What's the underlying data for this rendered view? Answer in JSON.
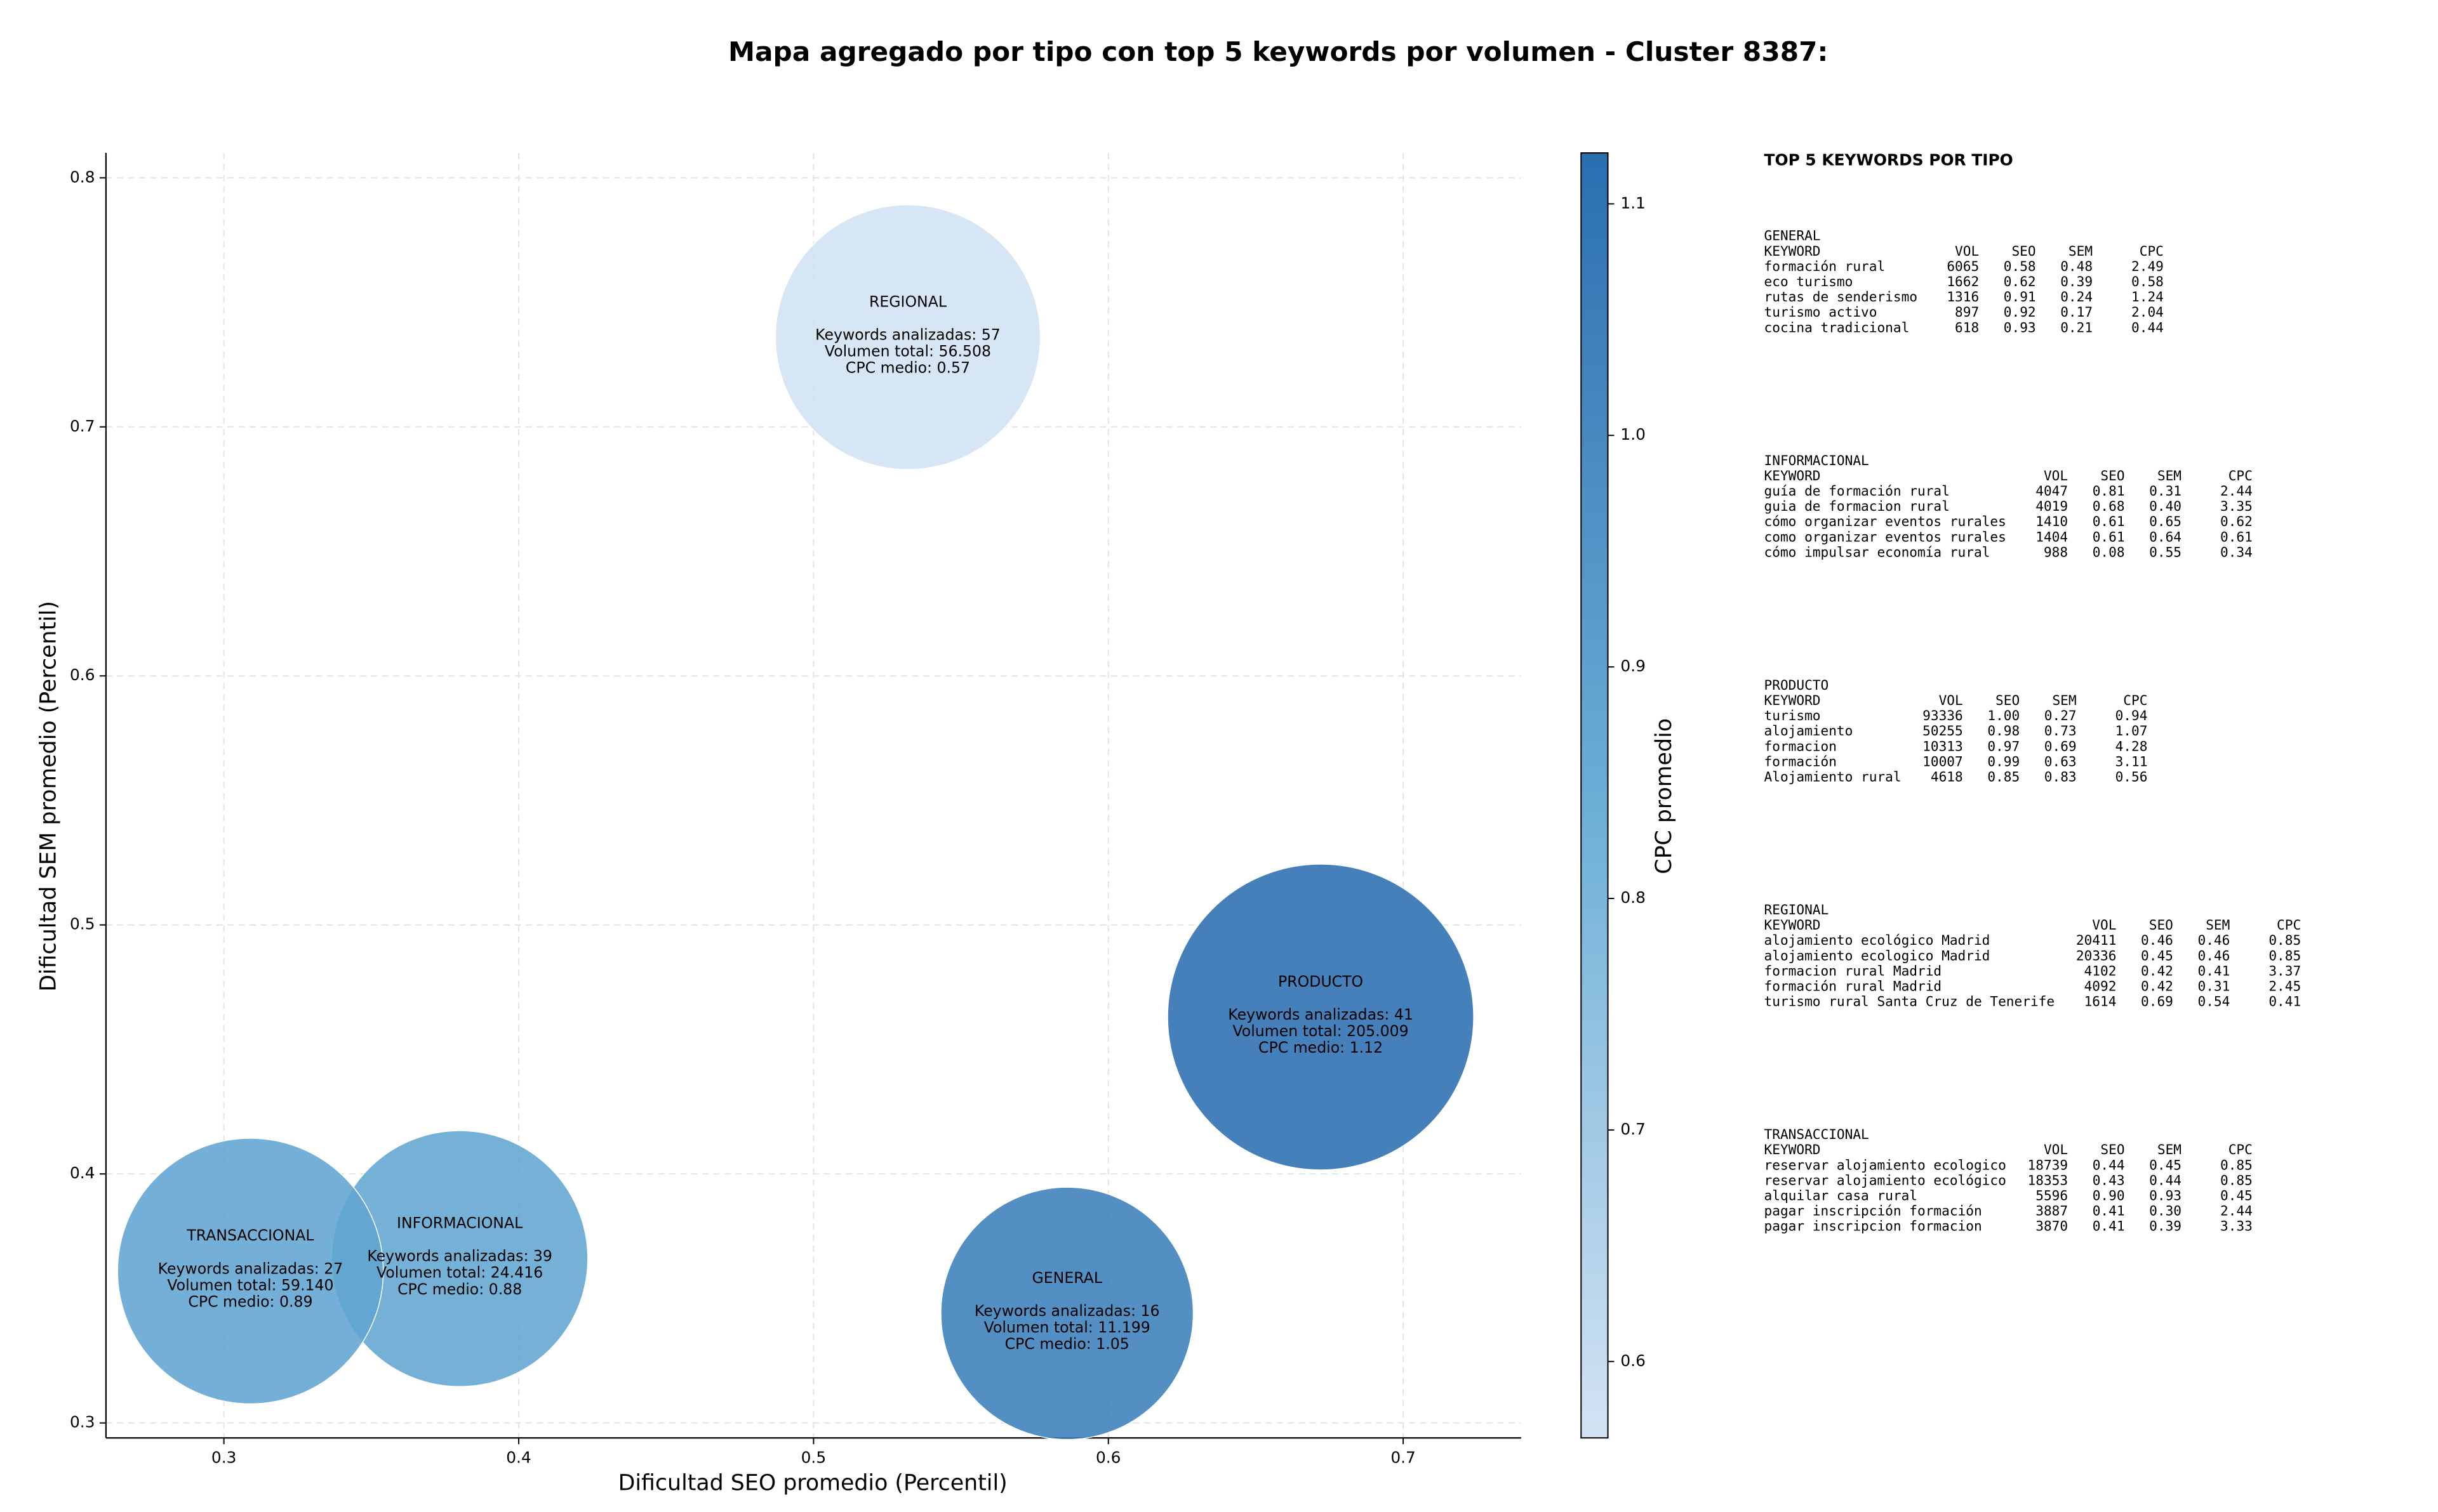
{
  "chart_data": {
    "type": "bubble",
    "title": "Mapa agregado por tipo con top 5 keywords por volumen - Cluster 8387:",
    "xlabel": "Dificultad SEO promedio (Percentil)",
    "ylabel": "Dificultad SEM promedio (Percentil)",
    "xlim": [
      0.26,
      0.74
    ],
    "ylim": [
      0.294,
      0.81
    ],
    "xticks": [
      0.3,
      0.4,
      0.5,
      0.6,
      0.7
    ],
    "yticks": [
      0.3,
      0.4,
      0.5,
      0.6,
      0.7,
      0.8
    ],
    "grid": true,
    "colorbar": {
      "label": "CPC promedio",
      "lim": [
        0.567,
        1.122
      ],
      "ticks": [
        0.6,
        0.7,
        0.8,
        0.9,
        {
          "value": 1.0,
          "label": "1.0"
        },
        1.1
      ],
      "colormap": [
        "#d3e3f3",
        "#6aaed6",
        "#2b6eb0"
      ]
    },
    "points": [
      {
        "label": "REGIONAL",
        "x": 0.532,
        "y": 0.736,
        "size": 56508,
        "color_value": 0.57,
        "lines": [
          "Keywords analizadas: 57",
          "Volumen total: 56.508",
          "CPC medio: 0.57"
        ]
      },
      {
        "label": "PRODUCTO",
        "x": 0.672,
        "y": 0.463,
        "size": 205009,
        "color_value": 1.12,
        "lines": [
          "Keywords analizadas: 41",
          "Volumen total: 205.009",
          "CPC medio: 1.12"
        ]
      },
      {
        "label": "GENERAL",
        "x": 0.586,
        "y": 0.344,
        "size": 11199,
        "color_value": 1.05,
        "lines": [
          "Keywords analizadas: 16",
          "Volumen total: 11.199",
          "CPC medio: 1.05"
        ]
      },
      {
        "label": "INFORMACIONAL",
        "x": 0.38,
        "y": 0.366,
        "size": 24416,
        "color_value": 0.88,
        "lines": [
          "Keywords analizadas: 39",
          "Volumen total: 24.416",
          "CPC medio: 0.88"
        ]
      },
      {
        "label": "TRANSACCIONAL",
        "x": 0.309,
        "y": 0.361,
        "size": 59140,
        "color_value": 0.89,
        "lines": [
          "Keywords analizadas: 27",
          "Volumen total: 59.140",
          "CPC medio: 0.89"
        ]
      }
    ]
  },
  "side_panel": {
    "title": "TOP 5 KEYWORDS POR TIPO",
    "columns": [
      "KEYWORD",
      "VOL",
      "SEO",
      "SEM",
      "CPC"
    ],
    "sections": [
      {
        "name": "GENERAL",
        "rows": [
          [
            "formación rural",
            "6065",
            "0.58",
            "0.48",
            "2.49"
          ],
          [
            "eco turismo",
            "1662",
            "0.62",
            "0.39",
            "0.58"
          ],
          [
            "rutas de senderismo",
            "1316",
            "0.91",
            "0.24",
            "1.24"
          ],
          [
            "turismo activo",
            "897",
            "0.92",
            "0.17",
            "2.04"
          ],
          [
            "cocina tradicional",
            "618",
            "0.93",
            "0.21",
            "0.44"
          ]
        ]
      },
      {
        "name": "INFORMACIONAL",
        "rows": [
          [
            "guía de formación rural",
            "4047",
            "0.81",
            "0.31",
            "2.44"
          ],
          [
            "guia de formacion rural",
            "4019",
            "0.68",
            "0.40",
            "3.35"
          ],
          [
            "cómo organizar eventos rurales",
            "1410",
            "0.61",
            "0.65",
            "0.62"
          ],
          [
            "como organizar eventos rurales",
            "1404",
            "0.61",
            "0.64",
            "0.61"
          ],
          [
            "cómo impulsar economía rural",
            "988",
            "0.08",
            "0.55",
            "0.34"
          ]
        ]
      },
      {
        "name": "PRODUCTO",
        "rows": [
          [
            "turismo",
            "93336",
            "1.00",
            "0.27",
            "0.94"
          ],
          [
            "alojamiento",
            "50255",
            "0.98",
            "0.73",
            "1.07"
          ],
          [
            "formacion",
            "10313",
            "0.97",
            "0.69",
            "4.28"
          ],
          [
            "formación",
            "10007",
            "0.99",
            "0.63",
            "3.11"
          ],
          [
            "Alojamiento rural",
            "4618",
            "0.85",
            "0.83",
            "0.56"
          ]
        ]
      },
      {
        "name": "REGIONAL",
        "rows": [
          [
            "alojamiento ecológico Madrid",
            "20411",
            "0.46",
            "0.46",
            "0.85"
          ],
          [
            "alojamiento ecologico Madrid",
            "20336",
            "0.45",
            "0.46",
            "0.85"
          ],
          [
            "formacion rural Madrid",
            "4102",
            "0.42",
            "0.41",
            "3.37"
          ],
          [
            "formación rural Madrid",
            "4092",
            "0.42",
            "0.31",
            "2.45"
          ],
          [
            "turismo rural Santa Cruz de Tenerife",
            "1614",
            "0.69",
            "0.54",
            "0.41"
          ]
        ]
      },
      {
        "name": "TRANSACCIONAL",
        "rows": [
          [
            "reservar alojamiento ecologico",
            "18739",
            "0.44",
            "0.45",
            "0.85"
          ],
          [
            "reservar alojamiento ecológico",
            "18353",
            "0.43",
            "0.44",
            "0.85"
          ],
          [
            "alquilar casa rural",
            "5596",
            "0.90",
            "0.93",
            "0.45"
          ],
          [
            "pagar inscripción formación",
            "3887",
            "0.41",
            "0.30",
            "2.44"
          ],
          [
            "pagar inscripcion formacion",
            "3870",
            "0.41",
            "0.39",
            "3.33"
          ]
        ]
      }
    ]
  }
}
